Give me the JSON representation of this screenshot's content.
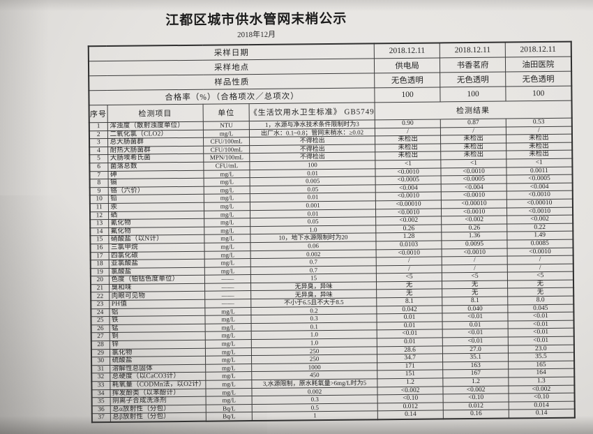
{
  "colors": {
    "paper": "#e5e3e0",
    "ink": "#232323",
    "line": "#3a3a3a"
  },
  "page": {
    "title": "江都区城市供水管网末梢公示",
    "subtitle": "2018年12月"
  },
  "info_rows": [
    {
      "label": "采样日期",
      "values": [
        "2018.12.11",
        "2018.12.11",
        "2018.12.11"
      ]
    },
    {
      "label": "采样地点",
      "values": [
        "供电局",
        "书香茗府",
        "油田医院"
      ]
    },
    {
      "label": "样品性质",
      "values": [
        "无色透明",
        "无色透明",
        "无色透明"
      ]
    },
    {
      "label": "合格率（%）（合格项次／总项次）",
      "values": [
        "100",
        "100",
        "100"
      ]
    }
  ],
  "columns": {
    "index": "序号",
    "item": "检测项目",
    "unit": "单位",
    "standard": "《生活饮用水卫生标准》 GB5749",
    "result": "检测结果"
  },
  "rows": [
    {
      "no": "1",
      "item": "浑浊度（散射浊度单位）",
      "unit": "NTU",
      "standard": "1，水源与净水技术条件限制时为3",
      "values": [
        "0.90",
        "0.87",
        "0.53"
      ]
    },
    {
      "no": "2",
      "item": "二氧化氯（CLO2）",
      "unit": "mg/L",
      "standard": "出厂水：0.1~0.8；管网末梢水：≥0.02",
      "values": [
        "/",
        "/",
        "/"
      ]
    },
    {
      "no": "3",
      "item": "总大肠菌群",
      "unit": "CFU/100mL",
      "standard": "不得检出",
      "values": [
        "未检出",
        "未检出",
        "未检出"
      ]
    },
    {
      "no": "4",
      "item": "耐热大肠菌群",
      "unit": "CFU/100mL",
      "standard": "不得检出",
      "values": [
        "未检出",
        "未检出",
        "未检出"
      ]
    },
    {
      "no": "5",
      "item": "大肠埃希氏菌",
      "unit": "MPN/100mL",
      "standard": "不得检出",
      "values": [
        "未检出",
        "未检出",
        "未检出"
      ]
    },
    {
      "no": "6",
      "item": "菌落总数",
      "unit": "CFU/mL",
      "standard": "100",
      "values": [
        "<1",
        "<1",
        "<1"
      ]
    },
    {
      "no": "7",
      "item": "砷",
      "unit": "mg/L",
      "standard": "0.01",
      "values": [
        "<0.0010",
        "<0.0010",
        "0.0011"
      ]
    },
    {
      "no": "8",
      "item": "镉",
      "unit": "mg/L",
      "standard": "0.005",
      "values": [
        "<0.0005",
        "<0.0005",
        "<0.0005"
      ]
    },
    {
      "no": "9",
      "item": "铬（六价）",
      "unit": "mg/L",
      "standard": "0.05",
      "values": [
        "<0.004",
        "<0.004",
        "<0.004"
      ]
    },
    {
      "no": "10",
      "item": "铅",
      "unit": "mg/L",
      "standard": "0.01",
      "values": [
        "<0.0010",
        "<0.0010",
        "<0.0010"
      ]
    },
    {
      "no": "11",
      "item": "汞",
      "unit": "mg/L",
      "standard": "0.001",
      "values": [
        "<0.00010",
        "<0.00010",
        "<0.00010"
      ]
    },
    {
      "no": "12",
      "item": "硒",
      "unit": "mg/L",
      "standard": "0.01",
      "values": [
        "<0.0010",
        "<0.0010",
        "<0.0010"
      ]
    },
    {
      "no": "13",
      "item": "氰化物",
      "unit": "mg/L",
      "standard": "0.05",
      "values": [
        "<0.002",
        "<0.002",
        "<0.002"
      ]
    },
    {
      "no": "14",
      "item": "氟化物",
      "unit": "mg/L",
      "standard": "1.0",
      "values": [
        "0.26",
        "0.26",
        "0.22"
      ]
    },
    {
      "no": "15",
      "item": "硝酸盐（以N计）",
      "unit": "mg/L",
      "standard": "10，地下水源限制时为20",
      "values": [
        "1.28",
        "1.36",
        "1.49"
      ]
    },
    {
      "no": "16",
      "item": "三氯甲烷",
      "unit": "mg/L",
      "standard": "0.06",
      "values": [
        "0.0103",
        "0.0095",
        "0.0085"
      ]
    },
    {
      "no": "17",
      "item": "四氯化碳",
      "unit": "mg/L",
      "standard": "0.002",
      "values": [
        "<0.0010",
        "<0.0010",
        "<0.0010"
      ]
    },
    {
      "no": "18",
      "item": "亚氯酸盐",
      "unit": "mg/L",
      "standard": "0.7",
      "values": [
        "/",
        "/",
        "/"
      ]
    },
    {
      "no": "19",
      "item": "氯酸盐",
      "unit": "mg/L",
      "standard": "0.7",
      "values": [
        "/",
        "/",
        "/"
      ]
    },
    {
      "no": "20",
      "item": "色度（铂钴色度单位）",
      "unit": "——",
      "standard": "15",
      "values": [
        "<5",
        "<5",
        "<5"
      ]
    },
    {
      "no": "21",
      "item": "臭和味",
      "unit": "——",
      "standard": "无异臭，异味",
      "values": [
        "无",
        "无",
        "无"
      ]
    },
    {
      "no": "22",
      "item": "肉眼可见物",
      "unit": "——",
      "standard": "无异臭，异味",
      "values": [
        "无",
        "无",
        "无"
      ]
    },
    {
      "no": "23",
      "item": "PH值",
      "unit": "——",
      "standard": "不小于6.5且不大于8.5",
      "values": [
        "8.1",
        "8.1",
        "8.0"
      ]
    },
    {
      "no": "24",
      "item": "铝",
      "unit": "mg/L",
      "standard": "0.2",
      "values": [
        "0.042",
        "0.040",
        "0.045"
      ]
    },
    {
      "no": "25",
      "item": "铁",
      "unit": "mg/L",
      "standard": "0.3",
      "values": [
        "0.01",
        "<0.01",
        "<0.01"
      ]
    },
    {
      "no": "26",
      "item": "锰",
      "unit": "mg/L",
      "standard": "0.1",
      "values": [
        "0.01",
        "0.01",
        "<0.01"
      ]
    },
    {
      "no": "27",
      "item": "铜",
      "unit": "mg/L",
      "standard": "1.0",
      "values": [
        "<0.01",
        "<0.01",
        "<0.01"
      ]
    },
    {
      "no": "28",
      "item": "锌",
      "unit": "mg/L",
      "standard": "1.0",
      "values": [
        "0.01",
        "<0.01",
        "<0.01"
      ]
    },
    {
      "no": "29",
      "item": "氯化物",
      "unit": "mg/L",
      "standard": "250",
      "values": [
        "28.6",
        "27.0",
        "23.0"
      ]
    },
    {
      "no": "30",
      "item": "硫酸盐",
      "unit": "mg/L",
      "standard": "250",
      "values": [
        "34.7",
        "35.1",
        "35.5"
      ]
    },
    {
      "no": "31",
      "item": "溶解性总固体",
      "unit": "mg/L",
      "standard": "1000",
      "values": [
        "171",
        "163",
        "165"
      ]
    },
    {
      "no": "32",
      "item": "总硬度（以CaCO3计）",
      "unit": "mg/L",
      "standard": "450",
      "values": [
        "151",
        "167",
        "164"
      ]
    },
    {
      "no": "33",
      "item": "耗氧量（CODMn法，以O2计）",
      "unit": "mg/L",
      "standard": "3,水源限制，原水耗氧量>6mg/L时为5",
      "values": [
        "1.2",
        "1.2",
        "1.3"
      ]
    },
    {
      "no": "34",
      "item": "挥发酚类（以苯酚计）",
      "unit": "mg/L",
      "standard": "0.002",
      "values": [
        "<0.002",
        "<0.002",
        "<0.002"
      ]
    },
    {
      "no": "35",
      "item": "阴离子合成洗涤剂",
      "unit": "mg/L",
      "standard": "0.3",
      "values": [
        "<0.10",
        "<0.10",
        "<0.10"
      ]
    },
    {
      "no": "36",
      "item": "总α放射性（分包）",
      "unit": "Bq/L",
      "standard": "0.5",
      "values": [
        "0.012",
        "0.012",
        "0.014"
      ]
    },
    {
      "no": "37",
      "item": "总β放射性（分包）",
      "unit": "Bq/L",
      "standard": "1",
      "values": [
        "0.14",
        "0.16",
        "0.14"
      ]
    }
  ]
}
